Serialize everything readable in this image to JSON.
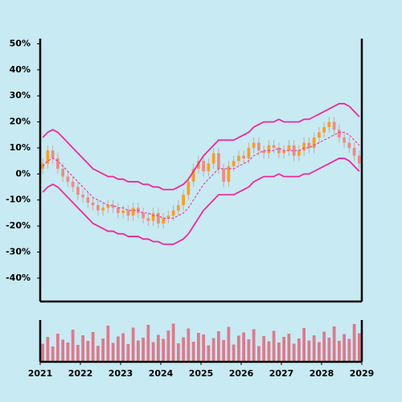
{
  "chart_data": {
    "type": "candlestick",
    "x": [
      2021.0625,
      2021.1875,
      2021.3125,
      2021.4375,
      2021.5625,
      2021.6875,
      2021.8125,
      2021.9375,
      2022.0625,
      2022.1875,
      2022.3125,
      2022.4375,
      2022.5625,
      2022.6875,
      2022.8125,
      2022.9375,
      2023.0625,
      2023.1875,
      2023.3125,
      2023.4375,
      2023.5625,
      2023.6875,
      2023.8125,
      2023.9375,
      2024.0625,
      2024.1875,
      2024.3125,
      2024.4375,
      2024.5625,
      2024.6875,
      2024.8125,
      2024.9375,
      2025.0625,
      2025.1875,
      2025.3125,
      2025.4375,
      2025.5625,
      2025.6875,
      2025.8125,
      2025.9375,
      2026.0625,
      2026.1875,
      2026.3125,
      2026.4375,
      2026.5625,
      2026.6875,
      2026.8125,
      2026.9375,
      2027.0625,
      2027.1875,
      2027.3125,
      2027.4375,
      2027.5625,
      2027.6875,
      2027.8125,
      2027.9375,
      2028.0625,
      2028.1875,
      2028.3125,
      2028.4375,
      2028.5625,
      2028.6875,
      2028.8125,
      2028.9375
    ],
    "open": [
      2,
      4,
      9,
      6,
      2,
      -1,
      -3,
      -5,
      -8,
      -9,
      -11,
      -12,
      -14,
      -13,
      -12,
      -13,
      -15,
      -14,
      -16,
      -13,
      -15,
      -17,
      -18,
      -15,
      -19,
      -17,
      -16,
      -14,
      -12,
      -8,
      -3,
      2,
      5,
      1,
      4,
      8,
      2,
      -3,
      3,
      5,
      7,
      6,
      10,
      12,
      9,
      8,
      11,
      10,
      8,
      9,
      11,
      7,
      9,
      12,
      10,
      14,
      16,
      18,
      20,
      17,
      14,
      12,
      10,
      7
    ],
    "high": [
      6,
      11,
      11,
      8,
      4,
      1,
      -1,
      -3,
      -6,
      -7,
      -9,
      -10,
      -11,
      -10,
      -10,
      -11,
      -12,
      -12,
      -11,
      -11,
      -13,
      -15,
      -13,
      -13,
      -15,
      -14,
      -12,
      -10,
      -6,
      -1,
      4,
      7,
      7,
      6,
      10,
      10,
      4,
      5,
      7,
      9,
      9,
      12,
      14,
      14,
      11,
      13,
      13,
      12,
      11,
      13,
      13,
      11,
      14,
      14,
      16,
      18,
      20,
      22,
      22,
      19,
      16,
      14,
      12,
      9
    ],
    "low": [
      0,
      2,
      4,
      0,
      -3,
      -5,
      -7,
      -10,
      -11,
      -13,
      -14,
      -16,
      -16,
      -15,
      -15,
      -17,
      -17,
      -18,
      -18,
      -17,
      -19,
      -20,
      -20,
      -21,
      -21,
      -19,
      -18,
      -16,
      -14,
      -10,
      -5,
      0,
      -1,
      -1,
      2,
      0,
      -5,
      -5,
      1,
      3,
      4,
      4,
      8,
      7,
      6,
      6,
      8,
      6,
      6,
      7,
      5,
      5,
      7,
      8,
      8,
      12,
      14,
      16,
      15,
      12,
      10,
      8,
      5,
      2
    ],
    "close": [
      4,
      9,
      6,
      2,
      -1,
      -3,
      -5,
      -8,
      -9,
      -11,
      -12,
      -14,
      -13,
      -12,
      -13,
      -15,
      -14,
      -16,
      -13,
      -15,
      -17,
      -18,
      -15,
      -19,
      -17,
      -16,
      -14,
      -12,
      -8,
      -3,
      2,
      5,
      1,
      4,
      8,
      2,
      -3,
      3,
      5,
      7,
      6,
      10,
      12,
      9,
      8,
      11,
      10,
      8,
      9,
      11,
      7,
      9,
      12,
      10,
      14,
      16,
      18,
      20,
      17,
      14,
      12,
      10,
      7,
      4
    ],
    "volume": [
      45,
      62,
      38,
      70,
      55,
      48,
      80,
      42,
      66,
      52,
      74,
      40,
      58,
      90,
      47,
      63,
      71,
      44,
      85,
      53,
      60,
      92,
      49,
      67,
      57,
      78,
      95,
      46,
      61,
      83,
      50,
      72,
      68,
      41,
      59,
      76,
      54,
      87,
      43,
      65,
      73,
      56,
      81,
      39,
      64,
      51,
      77,
      48,
      62,
      70,
      45,
      58,
      84,
      53,
      66,
      49,
      75,
      60,
      88,
      52,
      69,
      57,
      94,
      71
    ],
    "volume_lim": [
      0,
      100
    ],
    "bands": {
      "color": "#f0289a",
      "upper": [
        14,
        16,
        17,
        16,
        14,
        12,
        10,
        8,
        6,
        4,
        2,
        1,
        0,
        -1,
        -1,
        -2,
        -2,
        -3,
        -3,
        -3,
        -4,
        -4,
        -5,
        -5,
        -6,
        -6,
        -6,
        -5,
        -4,
        -2,
        1,
        4,
        7,
        9,
        11,
        13,
        13,
        13,
        13,
        14,
        15,
        16,
        18,
        19,
        20,
        20,
        20,
        21,
        20,
        20,
        20,
        20,
        21,
        21,
        22,
        23,
        24,
        25,
        26,
        27,
        27,
        26,
        24,
        22
      ],
      "middle": [
        3,
        5,
        6,
        5,
        3,
        1,
        -1,
        -3,
        -5,
        -7,
        -9,
        -10,
        -11,
        -12,
        -12,
        -13,
        -13,
        -14,
        -14,
        -14,
        -15,
        -15,
        -16,
        -16,
        -17,
        -17,
        -17,
        -16,
        -15,
        -13,
        -10,
        -7,
        -4,
        -2,
        0,
        2,
        2,
        2,
        2,
        3,
        4,
        5,
        7,
        8,
        9,
        9,
        9,
        10,
        9,
        9,
        9,
        9,
        10,
        10,
        11,
        12,
        13,
        14,
        15,
        16,
        16,
        15,
        13,
        11
      ],
      "lower": [
        -7,
        -5,
        -4,
        -5,
        -7,
        -9,
        -11,
        -13,
        -15,
        -17,
        -19,
        -20,
        -21,
        -22,
        -22,
        -23,
        -23,
        -24,
        -24,
        -24,
        -25,
        -25,
        -26,
        -26,
        -27,
        -27,
        -27,
        -26,
        -25,
        -23,
        -20,
        -17,
        -14,
        -12,
        -10,
        -8,
        -8,
        -8,
        -8,
        -7,
        -6,
        -5,
        -3,
        -2,
        -1,
        -1,
        -1,
        0,
        -1,
        -1,
        -1,
        -1,
        0,
        0,
        1,
        2,
        3,
        4,
        5,
        6,
        6,
        5,
        3,
        1
      ]
    },
    "up_color": "#ff9d1e",
    "down_color": "#f08a86",
    "volume_color": "#e0788a",
    "xlim": [
      2021,
      2029
    ],
    "xticks": [
      2021,
      2022,
      2023,
      2024,
      2025,
      2026,
      2027,
      2028,
      2029
    ],
    "ylim": [
      -49,
      52
    ],
    "yticks": [
      {
        "value": -40,
        "label": "-40%"
      },
      {
        "value": -30,
        "label": "-30%"
      },
      {
        "value": -20,
        "label": "-20%"
      },
      {
        "value": -10,
        "label": "-10%"
      },
      {
        "value": 0,
        "label": "0%"
      },
      {
        "value": 10,
        "label": "10%"
      },
      {
        "value": 20,
        "label": "20%"
      },
      {
        "value": 30,
        "label": "30%"
      },
      {
        "value": 40,
        "label": "40%"
      },
      {
        "value": 50,
        "label": "50%"
      }
    ]
  }
}
